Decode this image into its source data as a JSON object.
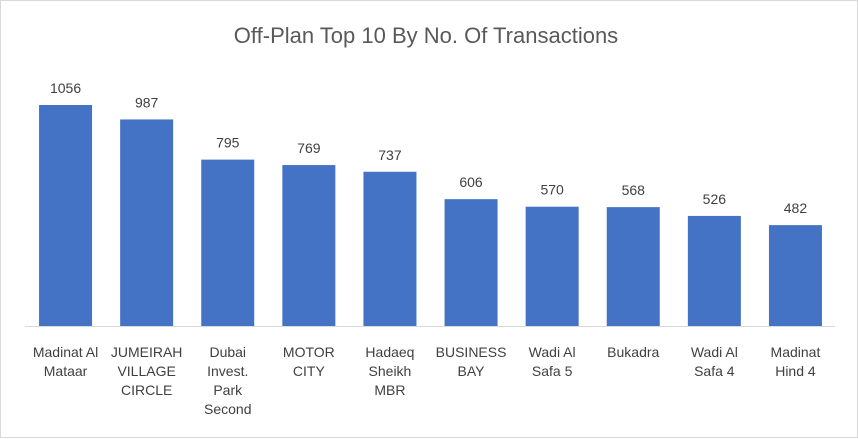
{
  "chart_data": {
    "type": "bar",
    "title": "Off-Plan Top 10 By No. Of Transactions",
    "xlabel": "",
    "ylabel": "",
    "ylim": [
      0,
      1056
    ],
    "grid": false,
    "legend": "none",
    "bar_color": "#4472C4",
    "categories": [
      [
        "Madinat Al",
        "Mataar"
      ],
      [
        "JUMEIRAH",
        "VILLAGE",
        "CIRCLE"
      ],
      [
        "Dubai",
        "Invest.",
        "Park",
        "Second"
      ],
      [
        "MOTOR",
        "CITY"
      ],
      [
        "Hadaeq",
        "Sheikh",
        "MBR"
      ],
      [
        "BUSINESS",
        "BAY"
      ],
      [
        "Wadi Al",
        "Safa 5"
      ],
      [
        "Bukadra"
      ],
      [
        "Wadi Al",
        "Safa 4"
      ],
      [
        "Madinat",
        "Hind 4"
      ]
    ],
    "values": [
      1056,
      987,
      795,
      769,
      737,
      606,
      570,
      568,
      526,
      482
    ]
  }
}
